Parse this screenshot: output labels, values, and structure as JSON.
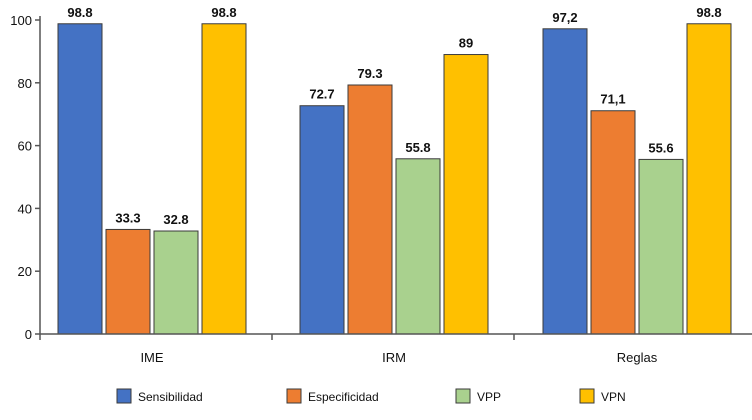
{
  "chart_data": {
    "type": "bar",
    "title": "",
    "xlabel": "",
    "ylabel": "",
    "categories": [
      "IME",
      "IRM",
      "Reglas"
    ],
    "ylim": [
      0,
      100
    ],
    "yticks": [
      0,
      20,
      40,
      60,
      80,
      100
    ],
    "grid": false,
    "legend_position": "bottom",
    "series": [
      {
        "name": "Sensibilidad",
        "color": "#4472c4",
        "values": [
          98.8,
          72.7,
          97.2
        ],
        "labels": [
          "98.8",
          "72.7",
          "97,2"
        ]
      },
      {
        "name": "Especificidad",
        "color": "#ed7d31",
        "values": [
          33.3,
          79.3,
          71.1
        ],
        "labels": [
          "33.3",
          "79.3",
          "71,1"
        ]
      },
      {
        "name": "VPP",
        "color": "#a9d18e",
        "values": [
          32.8,
          55.8,
          55.6
        ],
        "labels": [
          "32.8",
          "55.8",
          "55.6"
        ]
      },
      {
        "name": "VPN",
        "color": "#ffc000",
        "values": [
          98.8,
          89,
          98.8
        ],
        "labels": [
          "98.8",
          "89",
          "98.8"
        ]
      }
    ]
  }
}
